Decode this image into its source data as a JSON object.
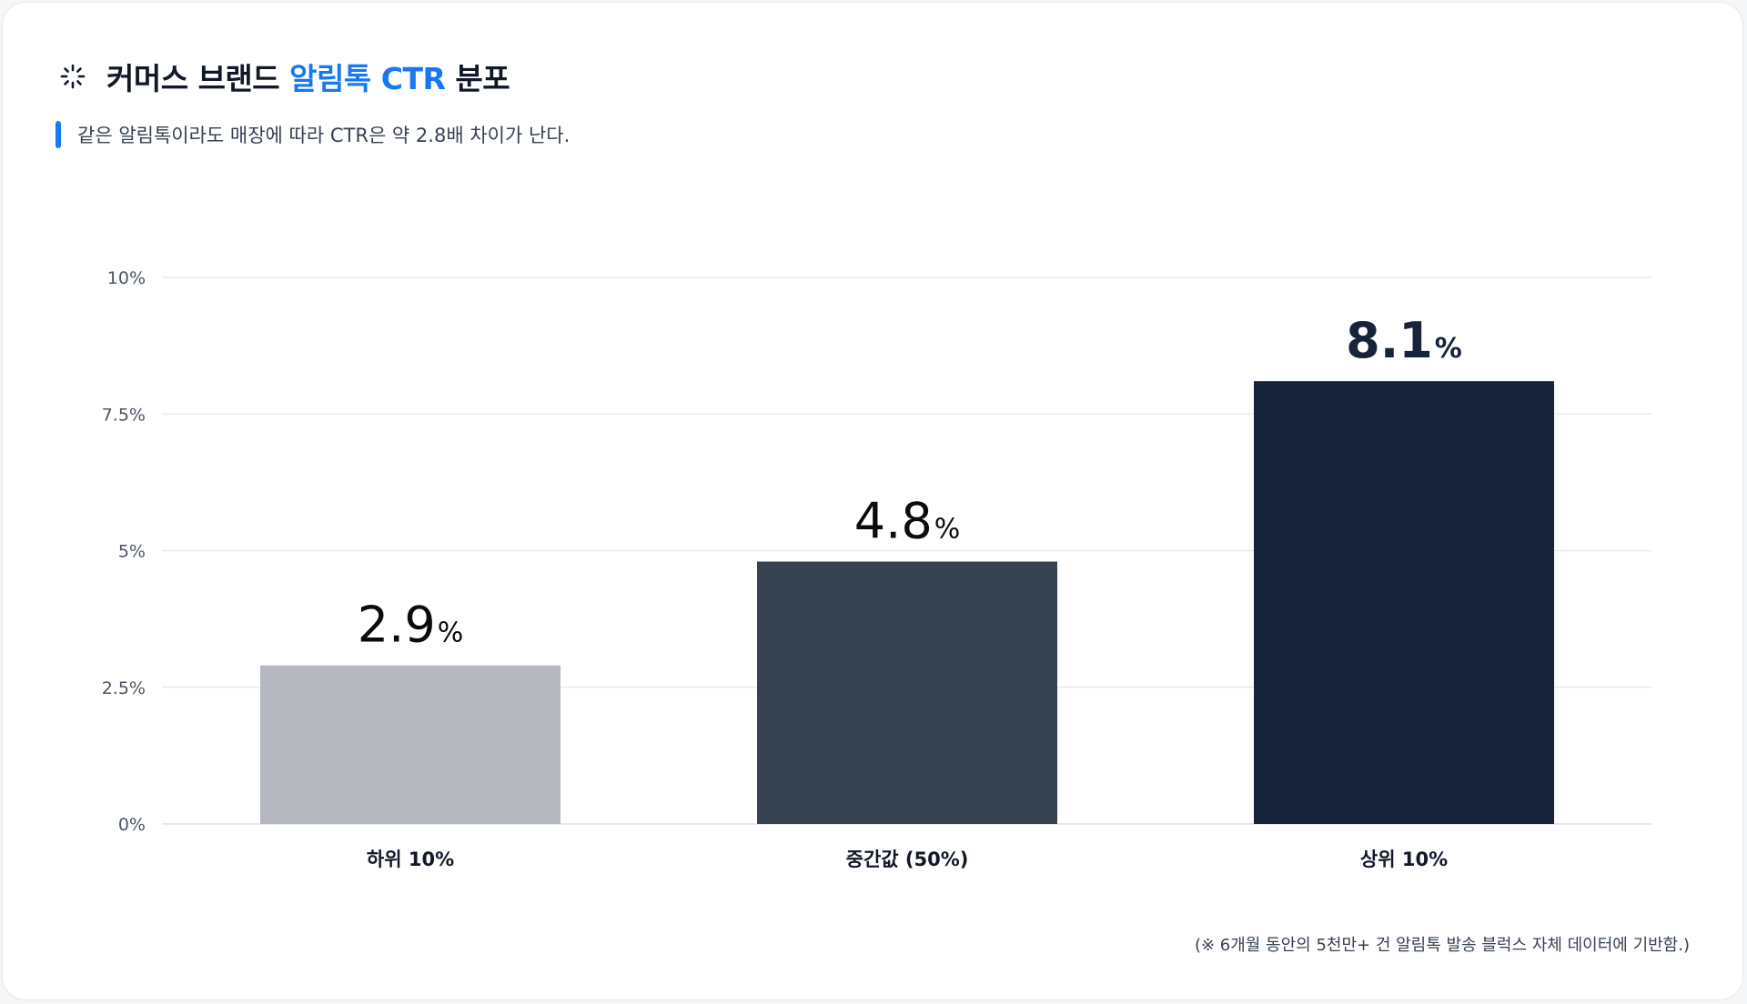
{
  "header": {
    "title_prefix": "커머스 브랜드",
    "title_highlight": "알림톡 CTR",
    "title_suffix": "분포",
    "subtitle": "같은 알림톡이라도 매장에 따라 CTR은 약 2.8배 차이가 난다."
  },
  "colors": {
    "accent": "#1877f2",
    "bar_low": "#b6b8c0",
    "bar_mid": "#364250",
    "bar_high": "#16233a",
    "grid": "#e9ebef"
  },
  "chart_data": {
    "type": "bar",
    "categories": [
      "하위 10%",
      "중간값 (50%)",
      "상위 10%"
    ],
    "values": [
      2.9,
      4.8,
      8.1
    ],
    "value_labels": [
      "2.9",
      "4.8",
      "8.1"
    ],
    "value_unit": "%",
    "ylim": [
      0,
      10
    ],
    "yticks": [
      0,
      2.5,
      5,
      7.5,
      10
    ],
    "ytick_labels": [
      "0%",
      "2.5%",
      "5%",
      "7.5%",
      "10%"
    ],
    "grid": true,
    "bar_colors": [
      "#b6b8c0",
      "#364250",
      "#16233a"
    ],
    "label_colors": [
      "#0b0b0f",
      "#0b0b0f",
      "#16233a"
    ],
    "title": "",
    "xlabel": "",
    "ylabel": ""
  },
  "footnote": "(※ 6개월 동안의 5천만+ 건 알림톡 발송 블럭스 자체 데이터에 기반함.)"
}
